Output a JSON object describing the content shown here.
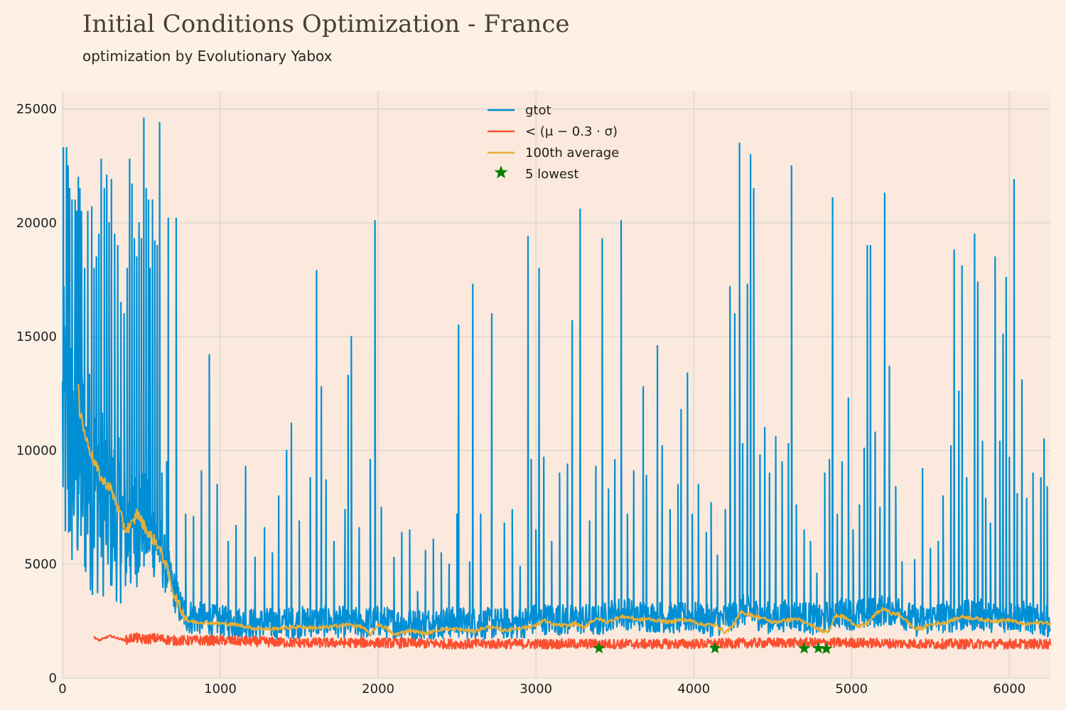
{
  "chart_data": {
    "type": "line",
    "title": "Initial Conditions Optimization - France",
    "subtitle": "optimization by Evolutionary Yabox",
    "xlabel": "",
    "ylabel": "",
    "xlim": [
      0,
      6260
    ],
    "ylim": [
      0,
      25800
    ],
    "x_ticks": [
      0,
      1000,
      2000,
      3000,
      4000,
      5000,
      6000
    ],
    "y_ticks": [
      0,
      5000,
      10000,
      15000,
      20000,
      25000
    ],
    "grid": true,
    "legend_position": "top-center",
    "colors": {
      "plot_bg": "#fae9dc",
      "page_bg": "#fdf1e6",
      "grid": "#cfcfcf",
      "gtot": "#008fd5",
      "lower": "#fc4f30",
      "average": "#e5ae38",
      "lowest": "#008000"
    },
    "legend": [
      {
        "key": "gtot",
        "label": "gtot",
        "marker": "line"
      },
      {
        "key": "lower",
        "label": "< (μ − 0.3 · σ)",
        "marker": "line"
      },
      {
        "key": "average",
        "label": "100th average",
        "marker": "line"
      },
      {
        "key": "lowest",
        "label": "5 lowest",
        "marker": "star"
      }
    ],
    "series": [
      {
        "key": "gtot",
        "name": "gtot",
        "noise": {
          "amp": [
            [
              0,
              6500
            ],
            [
              700,
              900
            ],
            [
              900,
              700
            ],
            [
              6260,
              700
            ]
          ],
          "floor": 1400
        },
        "x": [
          0,
          50,
          100,
          150,
          200,
          250,
          300,
          350,
          400,
          450,
          500,
          550,
          600,
          650,
          700,
          750,
          800,
          900,
          1000,
          1200,
          1400,
          1600,
          1800,
          1900,
          2000,
          2100,
          2200,
          2300,
          2500,
          2700,
          2900,
          3000,
          3100,
          3200,
          3300,
          3400,
          3500,
          3600,
          3700,
          3800,
          3900,
          4000,
          4100,
          4200,
          4300,
          4400,
          4500,
          4600,
          4700,
          4800,
          4900,
          5000,
          5100,
          5200,
          5300,
          5400,
          5500,
          5600,
          5700,
          5800,
          5900,
          6000,
          6100,
          6200,
          6260
        ],
        "y": [
          11000,
          10000,
          9500,
          9000,
          8500,
          8000,
          7500,
          7000,
          6500,
          6500,
          7000,
          6500,
          6000,
          5000,
          4000,
          3000,
          2700,
          2600,
          2500,
          2400,
          2400,
          2500,
          2450,
          2400,
          2500,
          2400,
          2350,
          2400,
          2450,
          2400,
          2400,
          2600,
          2600,
          2550,
          2600,
          2500,
          2900,
          2800,
          2700,
          2700,
          2600,
          2700,
          2500,
          2600,
          3000,
          2800,
          2600,
          2800,
          2700,
          2500,
          2900,
          2800,
          2800,
          3000,
          3000,
          2500,
          2600,
          2700,
          2700,
          2800,
          2700,
          2700,
          2700,
          2500,
          2500
        ],
        "spikes": [
          [
            5,
            23300
          ],
          [
            25,
            23300
          ],
          [
            35,
            22500
          ],
          [
            45,
            21500
          ],
          [
            60,
            21000
          ],
          [
            80,
            21000
          ],
          [
            90,
            20500
          ],
          [
            100,
            22000
          ],
          [
            110,
            21500
          ],
          [
            120,
            20500
          ],
          [
            140,
            18000
          ],
          [
            160,
            20500
          ],
          [
            185,
            20700
          ],
          [
            200,
            18000
          ],
          [
            215,
            18500
          ],
          [
            230,
            19500
          ],
          [
            245,
            22800
          ],
          [
            265,
            21500
          ],
          [
            280,
            22100
          ],
          [
            295,
            20000
          ],
          [
            310,
            21900
          ],
          [
            330,
            19500
          ],
          [
            350,
            19000
          ],
          [
            370,
            16500
          ],
          [
            390,
            16000
          ],
          [
            410,
            18000
          ],
          [
            425,
            22800
          ],
          [
            440,
            21700
          ],
          [
            455,
            19300
          ],
          [
            470,
            18500
          ],
          [
            485,
            20000
          ],
          [
            500,
            19300
          ],
          [
            515,
            24600
          ],
          [
            530,
            21500
          ],
          [
            545,
            21000
          ],
          [
            555,
            18000
          ],
          [
            570,
            21000
          ],
          [
            585,
            19200
          ],
          [
            600,
            19000
          ],
          [
            615,
            24400
          ],
          [
            630,
            9000
          ],
          [
            660,
            9500
          ],
          [
            670,
            20200
          ],
          [
            720,
            20200
          ],
          [
            780,
            7200
          ],
          [
            830,
            7100
          ],
          [
            880,
            9100
          ],
          [
            930,
            14200
          ],
          [
            980,
            8500
          ],
          [
            1050,
            6000
          ],
          [
            1100,
            6700
          ],
          [
            1160,
            9300
          ],
          [
            1220,
            5300
          ],
          [
            1280,
            6600
          ],
          [
            1330,
            5500
          ],
          [
            1370,
            8000
          ],
          [
            1420,
            10000
          ],
          [
            1450,
            11200
          ],
          [
            1500,
            6900
          ],
          [
            1570,
            8800
          ],
          [
            1610,
            17900
          ],
          [
            1640,
            12800
          ],
          [
            1670,
            8700
          ],
          [
            1720,
            6000
          ],
          [
            1790,
            7400
          ],
          [
            1810,
            13300
          ],
          [
            1830,
            15000
          ],
          [
            1880,
            6600
          ],
          [
            1950,
            9600
          ],
          [
            1980,
            20100
          ],
          [
            2020,
            7500
          ],
          [
            2100,
            5300
          ],
          [
            2150,
            6400
          ],
          [
            2200,
            6500
          ],
          [
            2250,
            3800
          ],
          [
            2300,
            5600
          ],
          [
            2350,
            6100
          ],
          [
            2400,
            5500
          ],
          [
            2450,
            5000
          ],
          [
            2500,
            7200
          ],
          [
            2510,
            15500
          ],
          [
            2580,
            5100
          ],
          [
            2600,
            17300
          ],
          [
            2650,
            7200
          ],
          [
            2720,
            16000
          ],
          [
            2800,
            6800
          ],
          [
            2850,
            7400
          ],
          [
            2900,
            4900
          ],
          [
            2950,
            19400
          ],
          [
            2970,
            9600
          ],
          [
            3000,
            6500
          ],
          [
            3020,
            18000
          ],
          [
            3050,
            9700
          ],
          [
            3100,
            6000
          ],
          [
            3150,
            9000
          ],
          [
            3200,
            9400
          ],
          [
            3230,
            15700
          ],
          [
            3280,
            20600
          ],
          [
            3340,
            6900
          ],
          [
            3380,
            9300
          ],
          [
            3420,
            19300
          ],
          [
            3460,
            8300
          ],
          [
            3500,
            9600
          ],
          [
            3540,
            20100
          ],
          [
            3580,
            7200
          ],
          [
            3620,
            9100
          ],
          [
            3680,
            12800
          ],
          [
            3700,
            8900
          ],
          [
            3770,
            14600
          ],
          [
            3800,
            10200
          ],
          [
            3850,
            7400
          ],
          [
            3900,
            8500
          ],
          [
            3920,
            11800
          ],
          [
            3960,
            13400
          ],
          [
            3990,
            7200
          ],
          [
            4030,
            8500
          ],
          [
            4080,
            6400
          ],
          [
            4110,
            7700
          ],
          [
            4150,
            5400
          ],
          [
            4200,
            7400
          ],
          [
            4230,
            17200
          ],
          [
            4260,
            16000
          ],
          [
            4290,
            23500
          ],
          [
            4310,
            10300
          ],
          [
            4340,
            17300
          ],
          [
            4360,
            23000
          ],
          [
            4380,
            21500
          ],
          [
            4420,
            9800
          ],
          [
            4450,
            11000
          ],
          [
            4480,
            9000
          ],
          [
            4520,
            10600
          ],
          [
            4560,
            9500
          ],
          [
            4600,
            10300
          ],
          [
            4620,
            22500
          ],
          [
            4650,
            7600
          ],
          [
            4700,
            6500
          ],
          [
            4740,
            6000
          ],
          [
            4780,
            4600
          ],
          [
            4830,
            9000
          ],
          [
            4860,
            9600
          ],
          [
            4880,
            21100
          ],
          [
            4910,
            7200
          ],
          [
            4940,
            9500
          ],
          [
            4980,
            12300
          ],
          [
            5010,
            6500
          ],
          [
            5050,
            7600
          ],
          [
            5080,
            10100
          ],
          [
            5100,
            19000
          ],
          [
            5120,
            19000
          ],
          [
            5150,
            10800
          ],
          [
            5180,
            7500
          ],
          [
            5210,
            21300
          ],
          [
            5240,
            13700
          ],
          [
            5280,
            8400
          ],
          [
            5320,
            5100
          ],
          [
            5400,
            5200
          ],
          [
            5450,
            9200
          ],
          [
            5500,
            5700
          ],
          [
            5550,
            6000
          ],
          [
            5580,
            8000
          ],
          [
            5630,
            10200
          ],
          [
            5650,
            18800
          ],
          [
            5680,
            12600
          ],
          [
            5700,
            18100
          ],
          [
            5730,
            8800
          ],
          [
            5780,
            19500
          ],
          [
            5800,
            17400
          ],
          [
            5830,
            10400
          ],
          [
            5850,
            7900
          ],
          [
            5880,
            6800
          ],
          [
            5910,
            18500
          ],
          [
            5940,
            10400
          ],
          [
            5960,
            15100
          ],
          [
            5980,
            17600
          ],
          [
            6000,
            9700
          ],
          [
            6030,
            21900
          ],
          [
            6050,
            8100
          ],
          [
            6080,
            13100
          ],
          [
            6110,
            7900
          ],
          [
            6150,
            9000
          ],
          [
            6200,
            8800
          ],
          [
            6220,
            10500
          ],
          [
            6240,
            8400
          ]
        ]
      },
      {
        "key": "lower",
        "name": "< (μ − 0.3 · σ)",
        "x": [
          200,
          230,
          300,
          350,
          400,
          450,
          500,
          600,
          700,
          800,
          1000,
          1500,
          2000,
          2500,
          3000,
          3500,
          4000,
          4500,
          5000,
          5500,
          6000,
          6260
        ],
        "y": [
          1800,
          1650,
          1850,
          1750,
          1650,
          1800,
          1700,
          1750,
          1650,
          1650,
          1650,
          1550,
          1550,
          1500,
          1500,
          1500,
          1500,
          1550,
          1550,
          1500,
          1500,
          1500
        ],
        "noise_amp": 220
      },
      {
        "key": "average",
        "name": "100th average",
        "x": [
          100,
          110,
          120,
          130,
          150,
          200,
          250,
          300,
          350,
          400,
          430,
          450,
          470,
          500,
          550,
          600,
          650,
          700,
          750,
          800,
          850,
          900,
          1000,
          1100,
          1200,
          1300,
          1400,
          1500,
          1600,
          1700,
          1800,
          1900,
          1950,
          2000,
          2050,
          2100,
          2200,
          2300,
          2400,
          2500,
          2600,
          2700,
          2800,
          2900,
          3000,
          3050,
          3100,
          3200,
          3250,
          3300,
          3350,
          3400,
          3450,
          3500,
          3550,
          3600,
          3650,
          3700,
          3800,
          3850,
          3900,
          3950,
          4000,
          4050,
          4100,
          4150,
          4200,
          4250,
          4300,
          4350,
          4400,
          4450,
          4500,
          4550,
          4600,
          4650,
          4700,
          4750,
          4800,
          4850,
          4900,
          4950,
          5000,
          5050,
          5100,
          5150,
          5200,
          5250,
          5300,
          5350,
          5400,
          5450,
          5500,
          5600,
          5700,
          5800,
          5900,
          6000,
          6100,
          6200,
          6260
        ],
        "y": [
          12800,
          11500,
          11800,
          11000,
          10500,
          9500,
          8700,
          8400,
          7500,
          6500,
          6700,
          6800,
          7300,
          6900,
          6300,
          5900,
          5100,
          3800,
          3000,
          2500,
          2450,
          2450,
          2400,
          2350,
          2200,
          2150,
          2200,
          2250,
          2200,
          2250,
          2350,
          2250,
          1900,
          2350,
          2200,
          1900,
          2100,
          1950,
          2150,
          2150,
          2050,
          2250,
          2100,
          2200,
          2300,
          2550,
          2350,
          2300,
          2400,
          2200,
          2500,
          2600,
          2450,
          2600,
          2700,
          2650,
          2550,
          2600,
          2500,
          2450,
          2550,
          2550,
          2500,
          2350,
          2350,
          2300,
          2000,
          2300,
          2900,
          2800,
          2700,
          2600,
          2450,
          2500,
          2550,
          2600,
          2450,
          2300,
          2100,
          2050,
          2750,
          2700,
          2450,
          2250,
          2400,
          2800,
          3050,
          2850,
          2800,
          2500,
          2150,
          2200,
          2350,
          2450,
          2700,
          2600,
          2500,
          2550,
          2350,
          2450,
          2400
        ],
        "noise_amp": 200
      },
      {
        "key": "lowest",
        "name": "5 lowest",
        "x": [
          3400,
          4135,
          4700,
          4790,
          4840
        ],
        "y": [
          1310,
          1310,
          1300,
          1310,
          1280
        ]
      }
    ]
  }
}
